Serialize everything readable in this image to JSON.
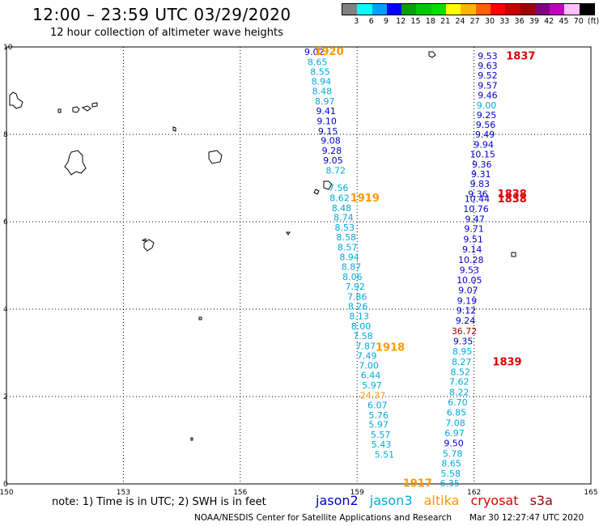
{
  "header": {
    "title": "12:00 – 23:59 UTC 03/29/2020",
    "subtitle": "12 hour collection of altimeter wave heights"
  },
  "scale": {
    "colors": [
      "#808080",
      "#00ffff",
      "#00a0ff",
      "#0000ff",
      "#00a000",
      "#00c800",
      "#00e000",
      "#ffff00",
      "#ffb400",
      "#ff6000",
      "#ff0000",
      "#c80000",
      "#a00000",
      "#800080",
      "#c000c0",
      "#ffc0ff",
      "#000000"
    ],
    "labels": [
      "3",
      "6",
      "9",
      "12",
      "15",
      "18",
      "21",
      "24",
      "27",
      "30",
      "33",
      "36",
      "39",
      "42",
      "45",
      "70",
      "(ft)"
    ]
  },
  "colors": {
    "jason2": "#0000cc",
    "jason3": "#00aadd",
    "altika": "#ff9900",
    "cryosat": "#dd0000",
    "s3a": "#990000"
  },
  "axes": {
    "x_ticks": [
      150,
      153,
      156,
      159,
      162,
      165
    ],
    "y_ticks": [
      0,
      2,
      4,
      6,
      8,
      10
    ],
    "xlim": [
      150,
      165
    ],
    "ylim": [
      0,
      10
    ],
    "x_labels": [
      "150",
      "153",
      "156",
      "159",
      "162",
      "165"
    ],
    "y_labels": [
      "0",
      "2",
      "4",
      "6",
      "8",
      "10"
    ]
  },
  "chart_data": {
    "type": "scatter",
    "title": "12:00 – 23:59 UTC 03/29/2020",
    "xlabel": "",
    "ylabel": "",
    "xlim": [
      150,
      165
    ],
    "ylim": [
      0,
      10
    ],
    "grid": true,
    "series": [
      {
        "name": "altika",
        "color_key": "altika",
        "values": [
          [
            "9.02",
            157.9,
            9.87,
            "jason2"
          ],
          [
            "8.65",
            157.98,
            9.64,
            "jason3"
          ],
          [
            "8.55",
            158.05,
            9.42,
            "jason3"
          ],
          [
            "8.94",
            158.08,
            9.19,
            "jason3"
          ],
          [
            "8.48",
            158.1,
            8.97,
            "jason3"
          ],
          [
            "8.97",
            158.17,
            8.74,
            "jason3"
          ],
          [
            "9.41",
            158.2,
            8.52,
            "jason2"
          ],
          [
            "9.10",
            158.22,
            8.29,
            "jason2"
          ],
          [
            "9.15",
            158.25,
            8.06,
            "jason2"
          ],
          [
            "9.08",
            158.32,
            7.84,
            "jason2"
          ],
          [
            "9.28",
            158.35,
            7.61,
            "jason2"
          ],
          [
            "9.05",
            158.38,
            7.39,
            "jason2"
          ],
          [
            "8.72",
            158.45,
            7.16,
            "jason3"
          ],
          [
            "7.56",
            158.52,
            6.76,
            "jason3"
          ],
          [
            "8.62",
            158.55,
            6.53,
            "jason3"
          ],
          [
            "8.48",
            158.6,
            6.3,
            "jason3"
          ],
          [
            "8.74",
            158.65,
            6.08,
            "jason3"
          ],
          [
            "8.53",
            158.68,
            5.85,
            "jason3"
          ],
          [
            "8.58",
            158.72,
            5.63,
            "jason3"
          ],
          [
            "8.57",
            158.75,
            5.4,
            "jason3"
          ],
          [
            "8.94",
            158.8,
            5.18,
            "jason3"
          ],
          [
            "8.87",
            158.85,
            4.95,
            "jason3"
          ],
          [
            "8.06",
            158.88,
            4.72,
            "jason3"
          ],
          [
            "7.92",
            158.95,
            4.5,
            "jason3"
          ],
          [
            "7.86",
            159.0,
            4.27,
            "jason3"
          ],
          [
            "8.26",
            159.02,
            4.05,
            "jason3"
          ],
          [
            "8.13",
            159.05,
            3.82,
            "jason3"
          ],
          [
            "8.00",
            159.1,
            3.59,
            "jason3"
          ],
          [
            "7.58",
            159.15,
            3.37,
            "jason3"
          ],
          [
            "7.87",
            159.22,
            3.14,
            "jason3"
          ],
          [
            "7.49",
            159.25,
            2.92,
            "jason3"
          ],
          [
            "7.00",
            159.3,
            2.69,
            "jason3"
          ],
          [
            "6.44",
            159.35,
            2.47,
            "jason3"
          ],
          [
            "5.97",
            159.38,
            2.24,
            "jason3"
          ],
          [
            "24.37",
            159.4,
            2.01,
            "altika"
          ],
          [
            "6.07",
            159.52,
            1.79,
            "jason3"
          ],
          [
            "5.76",
            159.55,
            1.56,
            "jason3"
          ],
          [
            "5.97",
            159.55,
            1.34,
            "jason3"
          ],
          [
            "5.57",
            159.6,
            1.11,
            "jason3"
          ],
          [
            "5.43",
            159.62,
            0.89,
            "jason3"
          ],
          [
            "5.51",
            159.7,
            0.66,
            "jason3"
          ]
        ]
      },
      {
        "name": "cryosat",
        "color_key": "cryosat",
        "values": [
          [
            "9.53",
            162.35,
            9.78,
            "jason2"
          ],
          [
            "9.63",
            162.35,
            9.56,
            "jason2"
          ],
          [
            "9.52",
            162.35,
            9.33,
            "jason2"
          ],
          [
            "9.57",
            162.35,
            9.1,
            "jason2"
          ],
          [
            "9.46",
            162.35,
            8.88,
            "jason2"
          ],
          [
            "9.00",
            162.32,
            8.65,
            "jason3"
          ],
          [
            "9.25",
            162.32,
            8.43,
            "jason2"
          ],
          [
            "9.56",
            162.3,
            8.2,
            "jason2"
          ],
          [
            "9.49",
            162.28,
            7.98,
            "jason2"
          ],
          [
            "9.94",
            162.25,
            7.75,
            "jason2"
          ],
          [
            "10.15",
            162.22,
            7.53,
            "jason2"
          ],
          [
            "9.36",
            162.2,
            7.3,
            "jason2"
          ],
          [
            "9.31",
            162.18,
            7.07,
            "jason2"
          ],
          [
            "9.83",
            162.15,
            6.85,
            "jason2"
          ],
          [
            "9.36",
            162.1,
            6.62,
            "jason2"
          ],
          [
            "10.44",
            162.08,
            6.51,
            "jason2"
          ],
          [
            "10.76",
            162.05,
            6.28,
            "jason2"
          ],
          [
            "9.47",
            162.02,
            6.05,
            "jason2"
          ],
          [
            "9.71",
            162.0,
            5.82,
            "jason2"
          ],
          [
            "9.51",
            161.98,
            5.58,
            "jason2"
          ],
          [
            "9.14",
            161.95,
            5.35,
            "jason2"
          ],
          [
            "10.28",
            161.92,
            5.11,
            "jason2"
          ],
          [
            "9.53",
            161.88,
            4.88,
            "jason2"
          ],
          [
            "10.05",
            161.88,
            4.65,
            "jason2"
          ],
          [
            "9.07",
            161.85,
            4.42,
            "jason2"
          ],
          [
            "9.19",
            161.82,
            4.18,
            "jason2"
          ],
          [
            "9.12",
            161.8,
            3.95,
            "jason2"
          ],
          [
            "9.24",
            161.78,
            3.72,
            "jason2"
          ],
          [
            "36.72",
            161.75,
            3.48,
            "s3a"
          ],
          [
            "9.35",
            161.72,
            3.25,
            "jason2"
          ],
          [
            "8.95",
            161.7,
            3.02,
            "jason3"
          ],
          [
            "8.27",
            161.68,
            2.78,
            "jason3"
          ],
          [
            "8.52",
            161.65,
            2.55,
            "jason3"
          ],
          [
            "7.62",
            161.62,
            2.32,
            "jason3"
          ],
          [
            "8.22",
            161.62,
            2.08,
            "jason3"
          ],
          [
            "6.70",
            161.58,
            1.85,
            "jason3"
          ],
          [
            "6.85",
            161.55,
            1.62,
            "jason3"
          ],
          [
            "7.08",
            161.52,
            1.38,
            "jason3"
          ],
          [
            "6.97",
            161.5,
            1.15,
            "jason3"
          ],
          [
            "9.50",
            161.48,
            0.92,
            "jason2"
          ],
          [
            "5.78",
            161.45,
            0.68,
            "jason3"
          ],
          [
            "8.65",
            161.42,
            0.45,
            "jason3"
          ],
          [
            "5.58",
            161.4,
            0.22,
            "jason3"
          ],
          [
            "6.35",
            161.38,
            0.0,
            "jason3"
          ]
        ]
      }
    ],
    "pass_labels": [
      [
        "1920",
        158.28,
        9.88,
        "altika"
      ],
      [
        "1919",
        159.2,
        6.53,
        "altika"
      ],
      [
        "1918",
        159.85,
        3.11,
        "altika"
      ],
      [
        "1917",
        160.55,
        0.0,
        "altika"
      ],
      [
        "1837",
        163.2,
        9.78,
        "cryosat"
      ],
      [
        "1838",
        162.98,
        6.62,
        "cryosat"
      ],
      [
        "1838",
        162.98,
        6.51,
        "cryosat"
      ],
      [
        "1839",
        162.85,
        2.78,
        "cryosat"
      ]
    ]
  },
  "footer": {
    "note": "note:  1) Time is in UTC;  2) SWH is in feet",
    "sats": [
      "jason2",
      "jason3",
      "altika",
      "cryosat",
      "s3a"
    ],
    "credit": "NOAA/NESDIS Center for Satellite Applications and Research",
    "timestamp": "Mar 30 12:27:47 UTC 2020"
  }
}
